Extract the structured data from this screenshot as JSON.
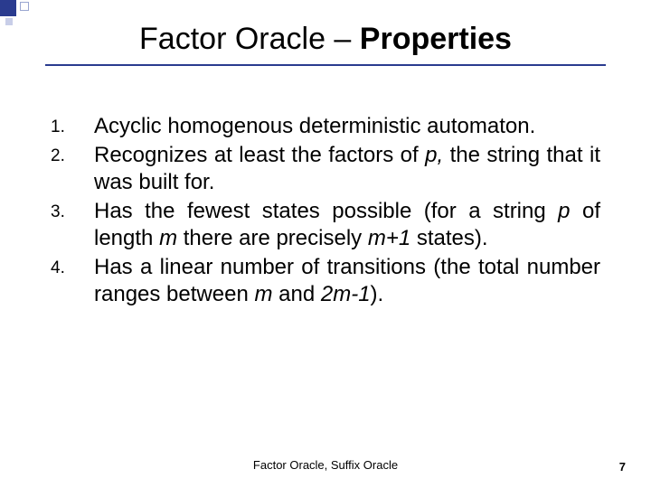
{
  "title_prefix": "Factor Oracle – ",
  "title_bold": "Properties",
  "items": [
    {
      "text": "Acyclic homogenous deterministic automaton."
    },
    {
      "pre": "Recognizes at least the factors of ",
      "it1": "p,",
      "post1": " the string that it was built for."
    },
    {
      "pre": "Has the fewest states possible (for a string ",
      "it1": "p",
      "mid": " of length ",
      "it2": "m",
      "mid2": " there are precisely ",
      "it3": "m+1",
      "post": " states)."
    },
    {
      "pre": "Has a linear number of transitions (the total number ranges between ",
      "it1": "m",
      "mid": " and ",
      "it2": "2m-1",
      "post": ")."
    }
  ],
  "footer": "Factor Oracle, Suffix Oracle",
  "page": "7",
  "colors": {
    "accent": "#2a3b8f",
    "text": "#000000",
    "bg": "#ffffff"
  },
  "fontsizes": {
    "title": 34,
    "body": 24,
    "marker": 19,
    "footer": 13
  }
}
